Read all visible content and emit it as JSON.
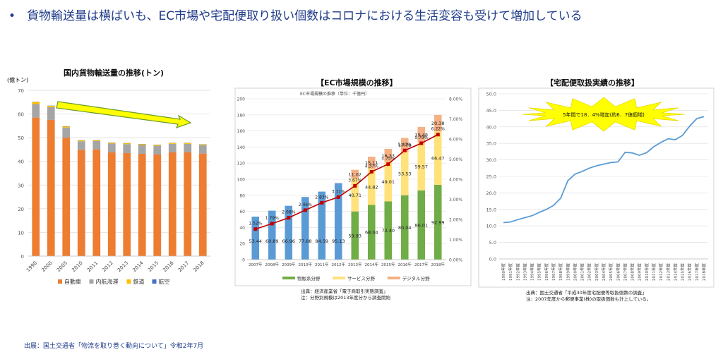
{
  "headline": {
    "bullet": "•",
    "text": "貨物輸送量は横ばいも、EC市場や宅配便取り扱い個数はコロナにおける生活変容も受けて増加している"
  },
  "source": "出展：国土交通省「物流を取り巻く動向について」令和2年7月",
  "colors": {
    "car": "#ed7d31",
    "ship": "#a5a5a5",
    "rail": "#ffc000",
    "air": "#4472c4",
    "ec_before": "#5b9bd5",
    "goods": "#70ad47",
    "service": "#ffe27a",
    "digital": "#f4b183",
    "rate_line": "#c00000",
    "takuhai_line": "#5b9bd5",
    "arrow": "#ffff00",
    "arrow_border": "#6a9b2c"
  },
  "chart1": {
    "title": "国内貨物輸送量の推移(トン)",
    "unit": "(億トン)",
    "legend": [
      "自動車",
      "内航海運",
      "鉄道",
      "航空"
    ],
    "chart_data": {
      "type": "bar",
      "stacked": true,
      "categories": [
        "1990",
        "2000",
        "2005",
        "2010",
        "2011",
        "2012",
        "2013",
        "2014",
        "2015",
        "2016",
        "2017",
        "2018"
      ],
      "series": [
        {
          "name": "自動車",
          "values": [
            58.5,
            57.5,
            50,
            44.8,
            45,
            43.8,
            43.5,
            43.2,
            42.9,
            43.8,
            43.8,
            43.3
          ]
        },
        {
          "name": "内航海運",
          "values": [
            5.7,
            5.4,
            4.3,
            3.7,
            3.6,
            3.7,
            3.8,
            3.7,
            3.7,
            3.6,
            3.6,
            3.5
          ]
        },
        {
          "name": "鉄道",
          "values": [
            0.9,
            0.6,
            0.5,
            0.4,
            0.4,
            0.4,
            0.4,
            0.4,
            0.4,
            0.4,
            0.4,
            0.4
          ]
        },
        {
          "name": "航空",
          "values": [
            0.02,
            0.02,
            0.02,
            0.02,
            0.02,
            0.02,
            0.02,
            0.02,
            0.02,
            0.02,
            0.02,
            0.02
          ]
        }
      ],
      "ylim": [
        0,
        70
      ],
      "yticks": [
        0,
        10,
        20,
        30,
        40,
        50,
        60,
        70
      ],
      "grid": true,
      "legend_position": "bottom"
    }
  },
  "chart2": {
    "title": "【EC市場規模の推移】",
    "inner_title": "EC市場規模の推移（単位：千億円）",
    "legend": [
      "物販系分野",
      "サービス分野",
      "デジタル分野"
    ],
    "notes": [
      "出典：経済産業省「電子商取引実態調査」",
      "注：分野別規模は2013年度分から調査開始"
    ],
    "chart_data": {
      "type": "bar",
      "stacked": true,
      "categories": [
        "2007年",
        "2008年",
        "2009年",
        "2010年",
        "2011年",
        "2012年",
        "2013年",
        "2014年",
        "2015年",
        "2016年",
        "2017年",
        "2018年"
      ],
      "series": [
        {
          "name": "",
          "values": [
            53.44,
            60.89,
            66.96,
            77.88,
            84.59,
            95.13,
            null,
            null,
            null,
            null,
            null,
            null
          ],
          "labels": [
            "53.44",
            "60.89",
            "66.96",
            "77.88",
            "84.59",
            "95.13",
            "",
            "",
            "",
            "",
            "",
            ""
          ]
        },
        {
          "name": "物販系分野",
          "values": [
            null,
            null,
            null,
            null,
            null,
            null,
            59.93,
            68.04,
            72.4,
            80.04,
            86.01,
            92.99
          ],
          "labels": [
            "",
            "",
            "",
            "",
            "",
            "",
            "59.93",
            "68.04",
            "72.40",
            "80.04",
            "86.01",
            "92.99"
          ]
        },
        {
          "name": "サービス分野",
          "values": [
            null,
            null,
            null,
            null,
            null,
            null,
            40.71,
            44.82,
            49.01,
            53.53,
            59.57,
            66.47
          ],
          "labels": [
            "",
            "",
            "",
            "",
            "",
            "",
            "40.71",
            "44.82",
            "49.01",
            "53.53",
            "59.57",
            "66.47"
          ]
        },
        {
          "name": "デジタル分野",
          "values": [
            null,
            null,
            null,
            null,
            null,
            null,
            11.02,
            15.11,
            16.33,
            17.78,
            19.48,
            20.38
          ],
          "labels": [
            "",
            "",
            "",
            "",
            "",
            "",
            "11.02",
            "15.11",
            "16.33",
            "17.78",
            "19.48",
            "20.38"
          ]
        }
      ],
      "line": {
        "values": [
          1.52,
          1.79,
          2.08,
          2.46,
          2.83,
          3.11,
          3.67,
          4.37,
          4.75,
          5.43,
          5.79,
          6.22
        ],
        "labels": [
          "1.52%",
          "1.79%",
          "2.08%",
          "2.46%",
          "2.83%",
          "3.11%",
          "3.67%",
          "4.37%",
          "4.75%",
          "5.43%",
          "5.79%",
          "6.22%"
        ]
      },
      "ylim": [
        0,
        200
      ],
      "yticks": [
        "0",
        "20",
        "40",
        "60",
        "80",
        "100",
        "120",
        "140",
        "160",
        "180",
        "200"
      ],
      "y2lim": [
        0,
        8
      ],
      "y2ticks": [
        "0.00%",
        "1.00%",
        "2.00%",
        "3.00%",
        "4.00%",
        "5.00%",
        "6.00%",
        "7.00%",
        "8.00%"
      ],
      "grid": true,
      "legend_position": "bottom"
    }
  },
  "chart3": {
    "title": "【宅配便取扱実績の推移】",
    "callout": "5年間で18．4%増加(約6．7億個増)",
    "notes": [
      "出典：国土交通省「平成30年度宅配便等取扱個数の調査」",
      "注：2007年度から郵便事業(株)の取扱個数も計上している。"
    ],
    "chart_data": {
      "type": "line",
      "categories": [
        "1990年度",
        "1991年度",
        "1992年度",
        "1993年度",
        "1994年度",
        "1995年度",
        "1996年度",
        "1997年度",
        "1998年度",
        "1999年度",
        "2000年度",
        "2001年度",
        "2002年度",
        "2003年度",
        "2004年度",
        "2005年度",
        "2006年度",
        "2007年度",
        "2008年度",
        "2009年度",
        "2010年度",
        "2011年度",
        "2012年度",
        "2013年度",
        "2014年度",
        "2015年度",
        "2016年度",
        "2017年度",
        "2018年度"
      ],
      "values": [
        11,
        11.2,
        11.9,
        12.5,
        13.1,
        14.1,
        15.0,
        16.2,
        18.4,
        23.7,
        25.7,
        26.5,
        27.5,
        28.2,
        28.7,
        29.2,
        29.4,
        32.3,
        32.1,
        31.4,
        32.2,
        34.0,
        35.3,
        36.4,
        36.1,
        37.4,
        40.2,
        42.5,
        43.1
      ],
      "ylim": [
        0,
        50
      ],
      "yticks": [
        "0.0",
        "5.0",
        "10.0",
        "15.0",
        "20.0",
        "25.0",
        "30.0",
        "35.0",
        "40.0",
        "45.0",
        "50.0"
      ],
      "grid": true
    }
  }
}
